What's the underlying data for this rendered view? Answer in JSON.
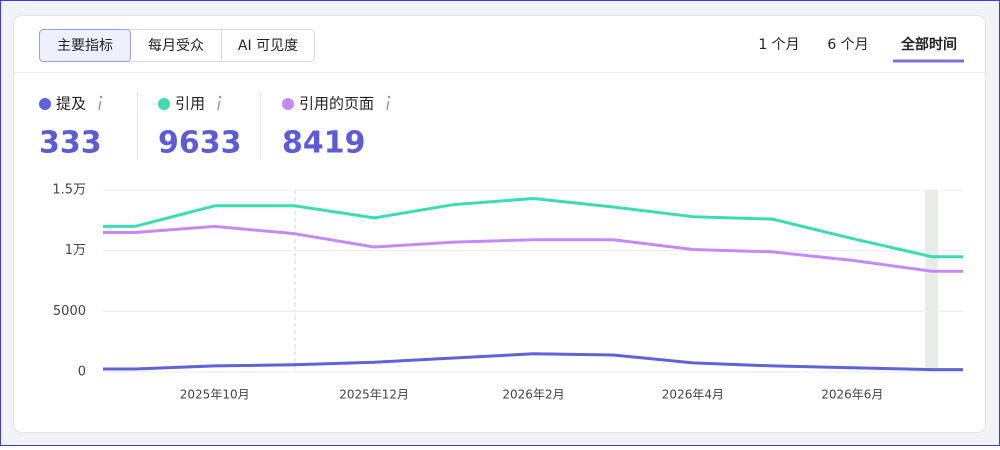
{
  "tabs": [
    "主要指标",
    "每月受众",
    "AI 可见度"
  ],
  "ranges": [
    "1 个月",
    "6 个月",
    "全部时间"
  ],
  "chart_data": {
    "type": "line",
    "categories": [
      null,
      "2025年10月",
      null,
      "2025年12月",
      null,
      "2026年2月",
      null,
      "2026年4月",
      null,
      "2026年6月",
      null
    ],
    "series": [
      {
        "name": "提及",
        "total": 333,
        "color": "#5f62d8",
        "values": [
          250,
          500,
          600,
          800,
          1150,
          1500,
          1400,
          750,
          500,
          350,
          200
        ]
      },
      {
        "name": "引用",
        "total": 9633,
        "color": "#3ddcb0",
        "values": [
          12000,
          13700,
          13700,
          12700,
          13800,
          14300,
          13600,
          12800,
          12600,
          11000,
          9500
        ]
      },
      {
        "name": "引用的页面",
        "total": 8419,
        "color": "#c58af9",
        "values": [
          11500,
          12000,
          11400,
          10300,
          10700,
          10900,
          10900,
          10100,
          9900,
          9200,
          8300
        ]
      }
    ],
    "ylim": [
      0,
      15000
    ],
    "yticks": [
      0,
      5000,
      {
        "value": 10000,
        "label": "1万"
      },
      {
        "value": 15000,
        "label": "1.5万"
      }
    ],
    "grid": true
  }
}
